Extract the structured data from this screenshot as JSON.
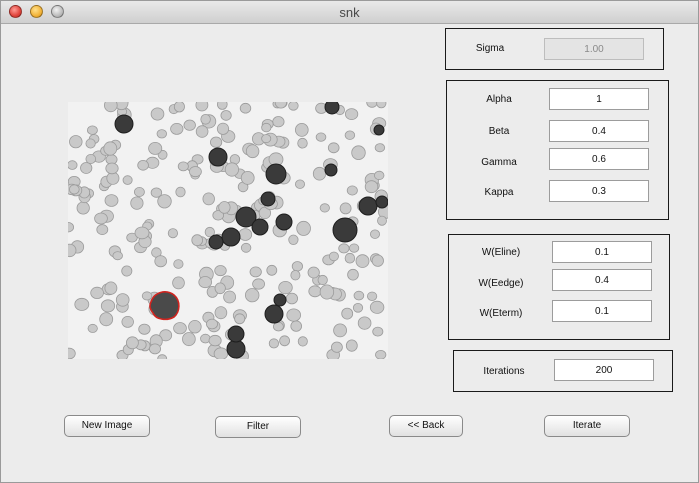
{
  "window": {
    "title": "snk"
  },
  "sigma_panel": {
    "label": "Sigma",
    "value": "1.00"
  },
  "params_panel": {
    "alpha": {
      "label": "Alpha",
      "value": "1"
    },
    "beta": {
      "label": "Beta",
      "value": "0.4"
    },
    "gamma": {
      "label": "Gamma",
      "value": "0.6"
    },
    "kappa": {
      "label": "Kappa",
      "value": "0.3"
    }
  },
  "weights_panel": {
    "eline": {
      "label": "W(Eline)",
      "value": "0.1"
    },
    "eedge": {
      "label": "W(Eedge)",
      "value": "0.4"
    },
    "eterm": {
      "label": "W(Eterm)",
      "value": "0.1"
    }
  },
  "iterations_panel": {
    "label": "Iterations",
    "value": "200"
  },
  "buttons": {
    "new_image": "New Image",
    "filter": "Filter",
    "back": "<< Back",
    "iterate": "Iterate"
  },
  "image": {
    "subject": "grayscale blood smear micrograph",
    "contour_color": "#d0241f"
  }
}
